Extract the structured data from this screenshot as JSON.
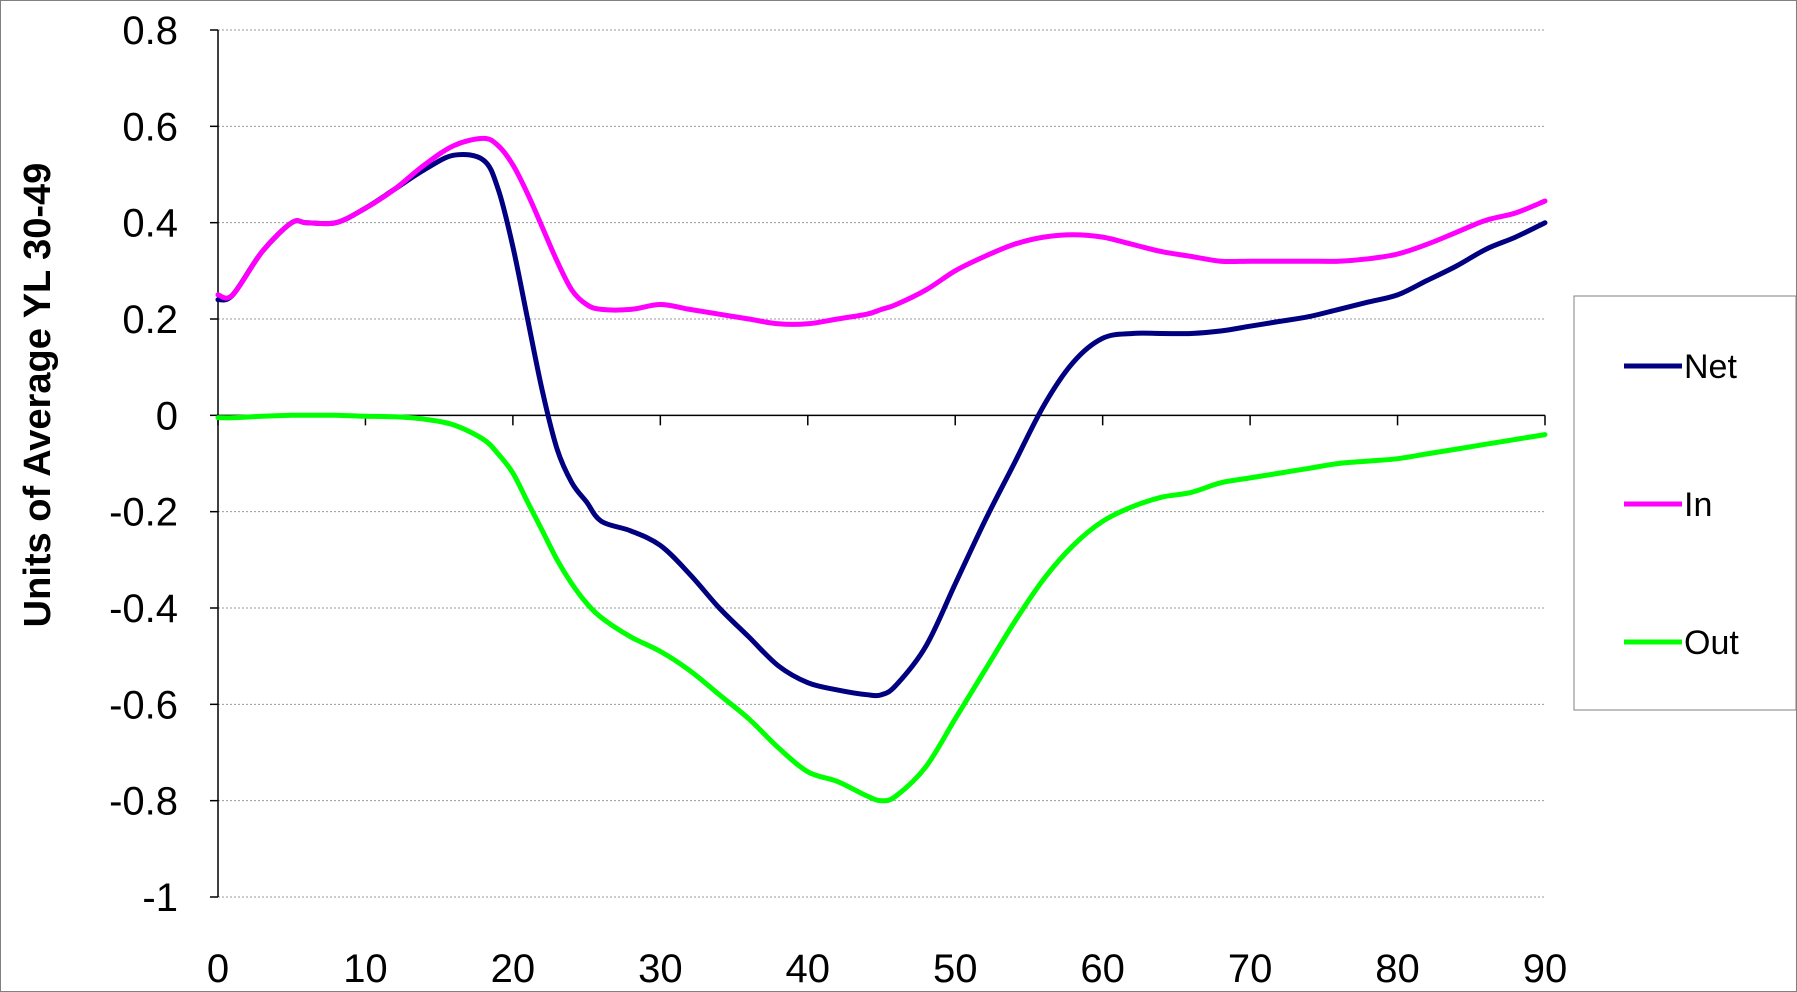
{
  "chart_data": {
    "type": "line",
    "title": "",
    "xlabel": "",
    "ylabel": "Units of Average YL 30-49",
    "xlim": [
      0,
      90
    ],
    "ylim": [
      -1,
      0.8
    ],
    "x_ticks": [
      "0",
      "10",
      "20",
      "30",
      "40",
      "50",
      "60",
      "70",
      "80",
      "90"
    ],
    "y_ticks": [
      "0.8",
      "0.6",
      "0.4",
      "0.2",
      "0",
      "-0.2",
      "-0.4",
      "-0.6",
      "-0.8",
      "-1"
    ],
    "grid": true,
    "legend_position": "right",
    "x": [
      0,
      1,
      3,
      5,
      6,
      8,
      10,
      12,
      14,
      16,
      18,
      19,
      20,
      21,
      22,
      23,
      24,
      25,
      26,
      28,
      30,
      32,
      34,
      36,
      38,
      40,
      42,
      44,
      45,
      46,
      48,
      50,
      52,
      54,
      56,
      58,
      60,
      62,
      64,
      66,
      68,
      70,
      72,
      74,
      76,
      78,
      80,
      82,
      84,
      86,
      88,
      90
    ],
    "series": [
      {
        "name": "Net",
        "color": "#000080",
        "values": [
          0.24,
          0.25,
          0.34,
          0.4,
          0.4,
          0.4,
          0.43,
          0.47,
          0.51,
          0.54,
          0.53,
          0.47,
          0.35,
          0.2,
          0.05,
          -0.07,
          -0.14,
          -0.18,
          -0.22,
          -0.24,
          -0.27,
          -0.33,
          -0.4,
          -0.46,
          -0.52,
          -0.555,
          -0.57,
          -0.58,
          -0.58,
          -0.56,
          -0.48,
          -0.35,
          -0.22,
          -0.1,
          0.02,
          0.11,
          0.16,
          0.17,
          0.17,
          0.17,
          0.175,
          0.185,
          0.195,
          0.205,
          0.22,
          0.235,
          0.25,
          0.28,
          0.31,
          0.345,
          0.37,
          0.4
        ]
      },
      {
        "name": "In",
        "color": "#FF00FF",
        "values": [
          0.25,
          0.25,
          0.34,
          0.4,
          0.4,
          0.4,
          0.43,
          0.47,
          0.52,
          0.56,
          0.575,
          0.56,
          0.52,
          0.46,
          0.39,
          0.32,
          0.26,
          0.23,
          0.22,
          0.22,
          0.23,
          0.22,
          0.21,
          0.2,
          0.19,
          0.19,
          0.2,
          0.21,
          0.22,
          0.23,
          0.26,
          0.3,
          0.33,
          0.355,
          0.37,
          0.375,
          0.37,
          0.355,
          0.34,
          0.33,
          0.32,
          0.32,
          0.32,
          0.32,
          0.32,
          0.325,
          0.335,
          0.355,
          0.38,
          0.405,
          0.42,
          0.445
        ]
      },
      {
        "name": "Out",
        "color": "#00FF00",
        "values": [
          -0.005,
          -0.005,
          -0.002,
          0.0,
          0.0,
          0.0,
          -0.002,
          -0.003,
          -0.008,
          -0.02,
          -0.05,
          -0.08,
          -0.12,
          -0.18,
          -0.24,
          -0.3,
          -0.35,
          -0.39,
          -0.42,
          -0.46,
          -0.49,
          -0.53,
          -0.58,
          -0.63,
          -0.69,
          -0.74,
          -0.76,
          -0.79,
          -0.8,
          -0.79,
          -0.73,
          -0.63,
          -0.53,
          -0.43,
          -0.34,
          -0.27,
          -0.22,
          -0.19,
          -0.17,
          -0.16,
          -0.14,
          -0.13,
          -0.12,
          -0.11,
          -0.1,
          -0.095,
          -0.09,
          -0.08,
          -0.07,
          -0.06,
          -0.05,
          -0.04
        ]
      }
    ]
  }
}
